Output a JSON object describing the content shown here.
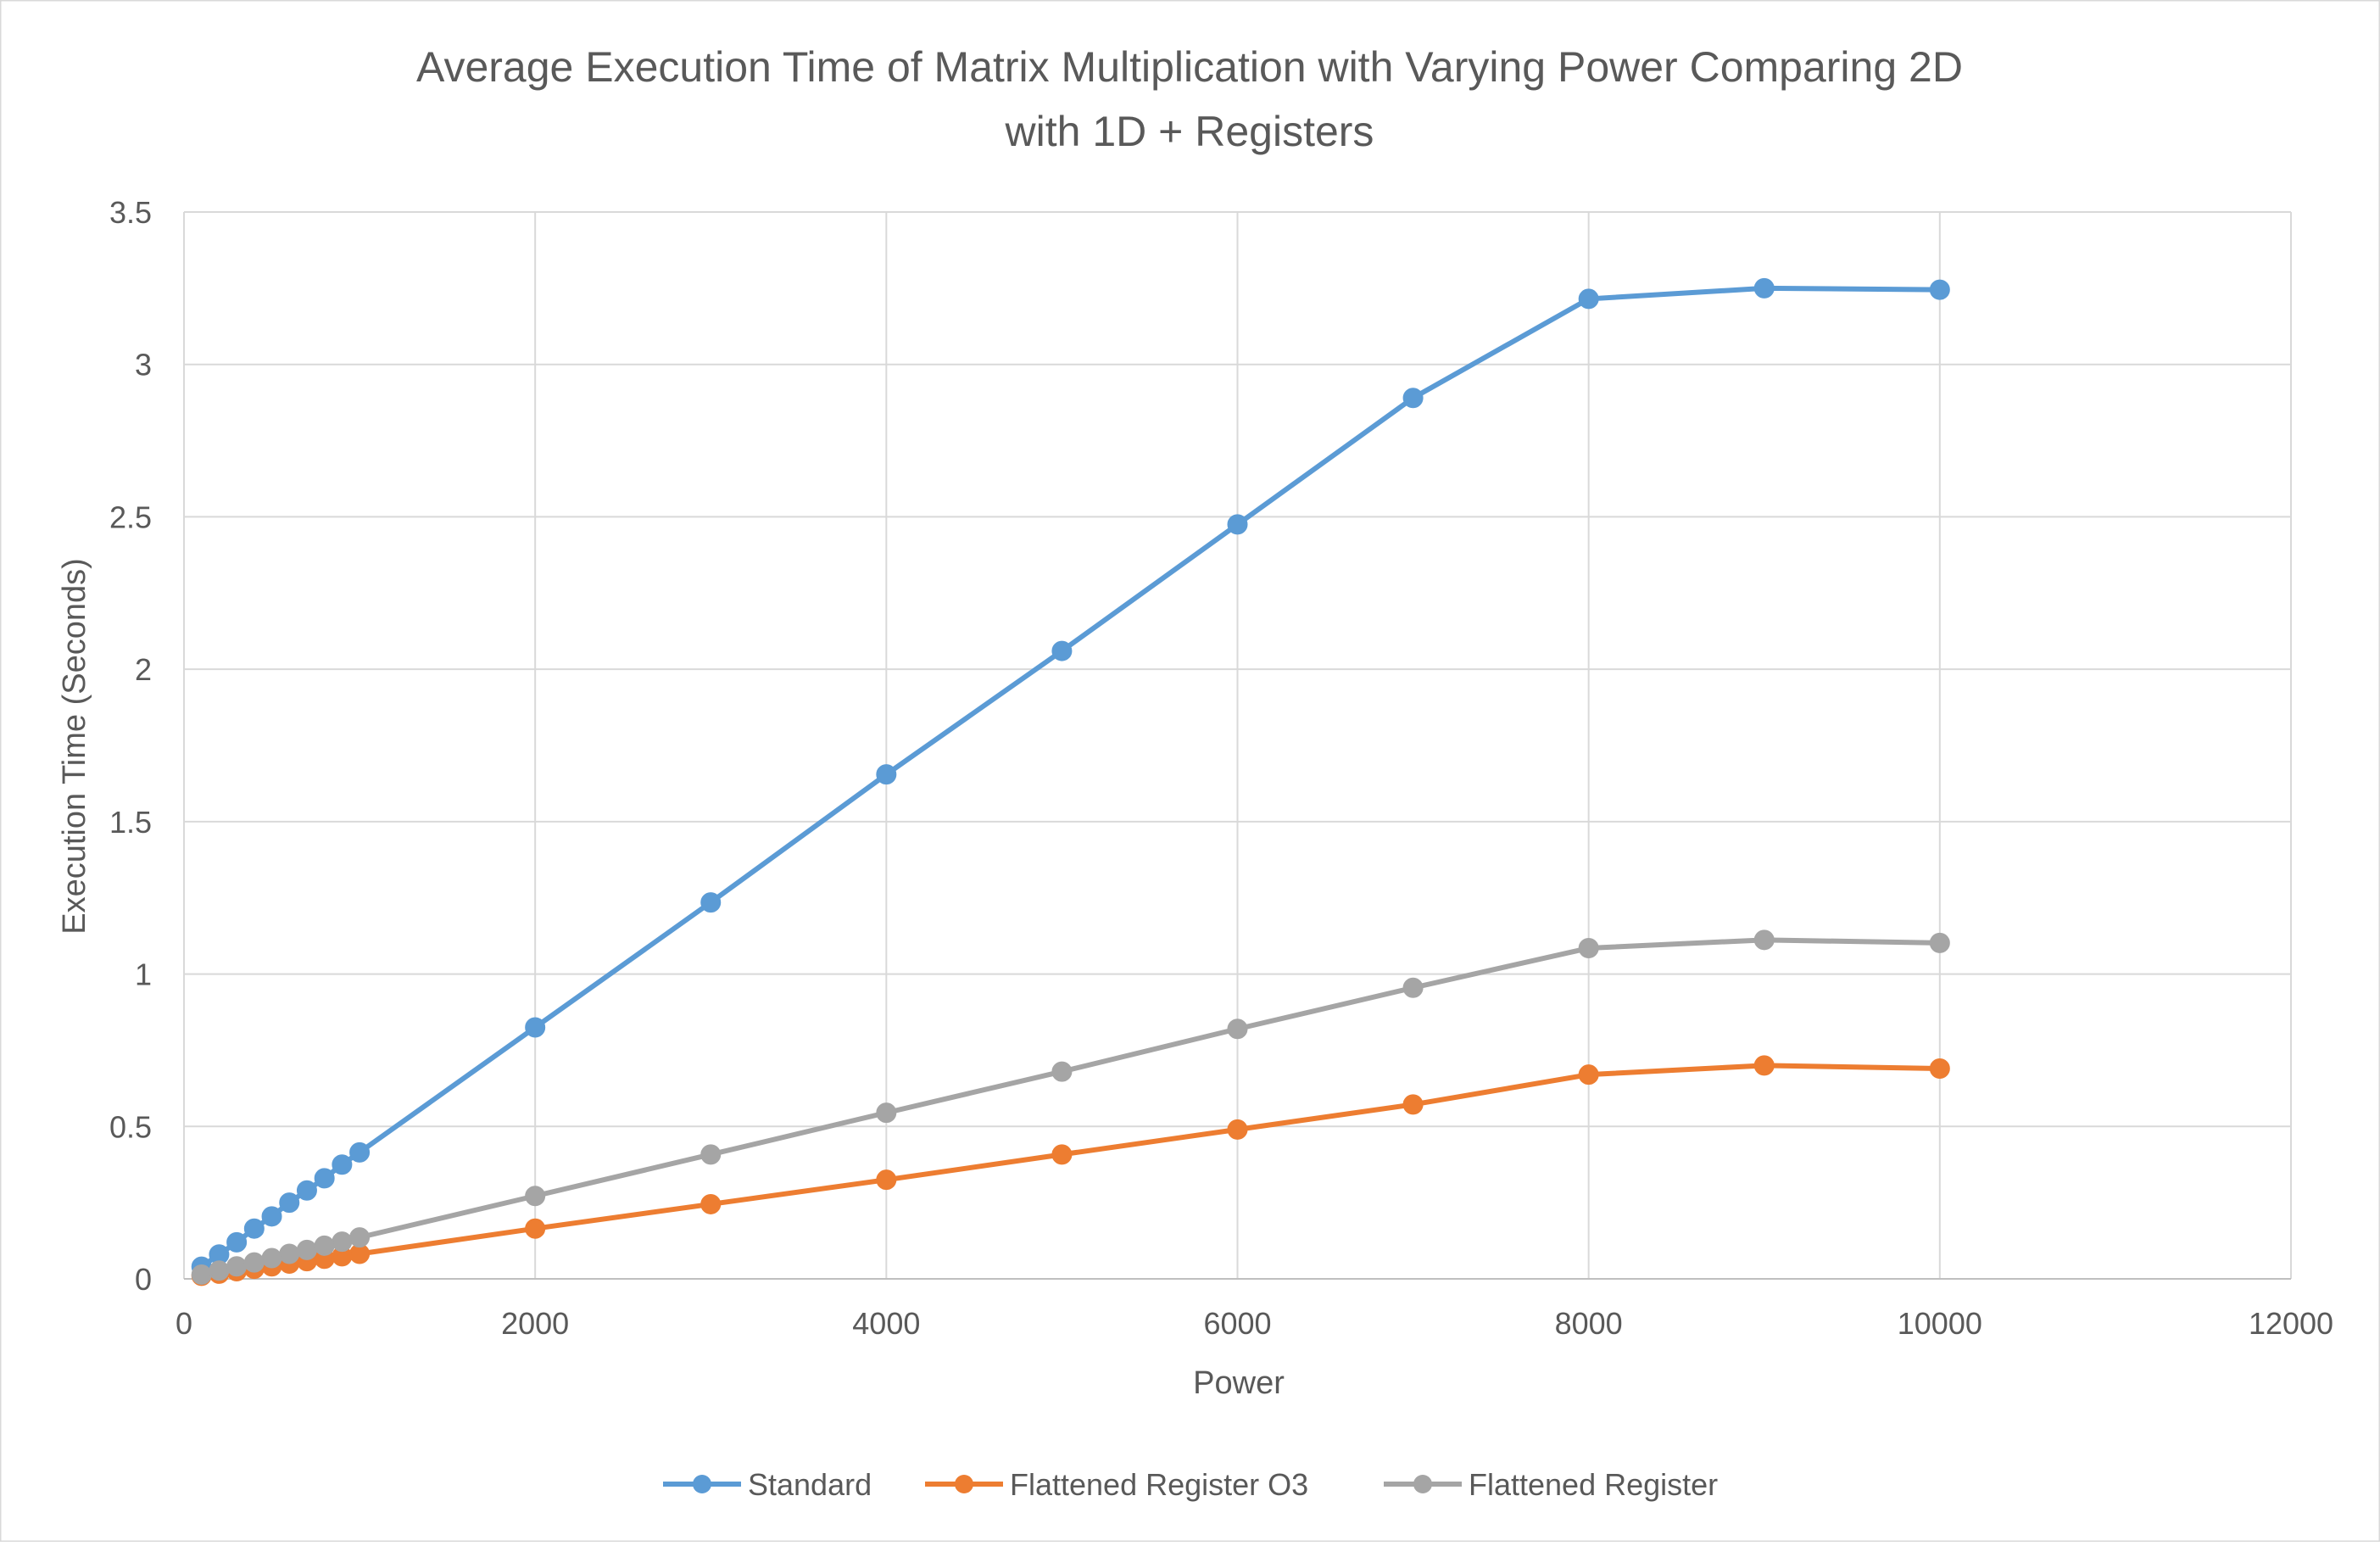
{
  "chart_data": {
    "type": "line",
    "title": "Average Execution Time of Matrix Multiplication with Varying Power Comparing 2D with 1D + Registers",
    "title_lines": [
      "Average Execution Time of Matrix Multiplication with Varying Power Comparing 2D",
      "with 1D + Registers"
    ],
    "xlabel": "Power",
    "ylabel": "Execution Time (Seconds)",
    "xlim": [
      0,
      12000
    ],
    "ylim": [
      0,
      3.5
    ],
    "x_ticks": [
      0,
      2000,
      4000,
      6000,
      8000,
      10000,
      12000
    ],
    "y_ticks": [
      0,
      0.5,
      1,
      1.5,
      2,
      2.5,
      3,
      3.5
    ],
    "x_tick_labels": [
      "0",
      "2000",
      "4000",
      "6000",
      "8000",
      "10000",
      "12000"
    ],
    "y_tick_labels": [
      "0",
      "0.5",
      "1",
      "1.5",
      "2",
      "2.5",
      "3",
      "3.5"
    ],
    "grid": true,
    "legend_position": "bottom",
    "x": [
      100,
      200,
      300,
      400,
      500,
      600,
      700,
      800,
      900,
      1000,
      2000,
      3000,
      4000,
      5000,
      6000,
      7000,
      8000,
      9000,
      10000
    ],
    "series": [
      {
        "name": "Standard",
        "color": "#5b9bd5",
        "values": [
          0.04,
          0.08,
          0.12,
          0.165,
          0.205,
          0.25,
          0.29,
          0.33,
          0.375,
          0.415,
          0.825,
          1.235,
          1.655,
          2.06,
          2.475,
          2.89,
          3.215,
          3.25,
          3.245
        ]
      },
      {
        "name": "Flattened Register O3",
        "color": "#ed7d31",
        "values": [
          0.01,
          0.017,
          0.025,
          0.033,
          0.041,
          0.05,
          0.058,
          0.066,
          0.074,
          0.082,
          0.165,
          0.245,
          0.325,
          0.408,
          0.49,
          0.572,
          0.67,
          0.7,
          0.69
        ]
      },
      {
        "name": "Flattened Register",
        "color": "#a5a5a5",
        "values": [
          0.014,
          0.027,
          0.041,
          0.054,
          0.068,
          0.082,
          0.095,
          0.109,
          0.122,
          0.136,
          0.272,
          0.408,
          0.545,
          0.68,
          0.82,
          0.955,
          1.085,
          1.112,
          1.102
        ]
      }
    ]
  }
}
